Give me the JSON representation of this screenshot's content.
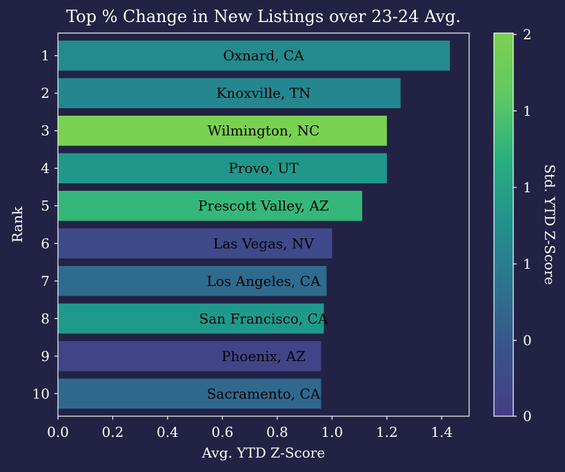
{
  "chart_data": {
    "type": "bar",
    "orientation": "horizontal",
    "title": "Top % Change in New Listings over 23-24 Avg.",
    "xlabel": "Avg. YTD Z-Score",
    "ylabel": "Rank",
    "xlim": [
      0,
      1.5
    ],
    "x_ticks": [
      "0.0",
      "0.2",
      "0.4",
      "0.6",
      "0.8",
      "1.0",
      "1.2",
      "1.4"
    ],
    "categories": [
      "1",
      "2",
      "3",
      "4",
      "5",
      "6",
      "7",
      "8",
      "9",
      "10"
    ],
    "labels": [
      "Oxnard, CA",
      "Knoxville, TN",
      "Wilmington, NC",
      "Provo, UT",
      "Prescott Valley, AZ",
      "Las Vegas, NV",
      "Los Angeles, CA",
      "San Francisco, CA",
      "Phoenix, AZ",
      "Sacramento, CA"
    ],
    "values": [
      1.43,
      1.25,
      1.2,
      1.2,
      1.11,
      1.0,
      0.98,
      0.97,
      0.96,
      0.96
    ],
    "bar_colors": [
      "#238a8d",
      "#24868e",
      "#7ad151",
      "#1f988b",
      "#35b779",
      "#3f4a8a",
      "#2f6b8e",
      "#1f9a8a",
      "#414487",
      "#31688e"
    ],
    "grid": false,
    "colorbar": {
      "label": "Std. YTD Z-Score",
      "tick_labels": [
        "0",
        "0",
        "1",
        "1",
        "1",
        "2"
      ],
      "colors": [
        "#433e85",
        "#3b528b",
        "#2c728e",
        "#21918c",
        "#28ae80",
        "#5ec962",
        "#7ad151"
      ]
    },
    "background": "#222244",
    "text_color": "#ffffff"
  }
}
